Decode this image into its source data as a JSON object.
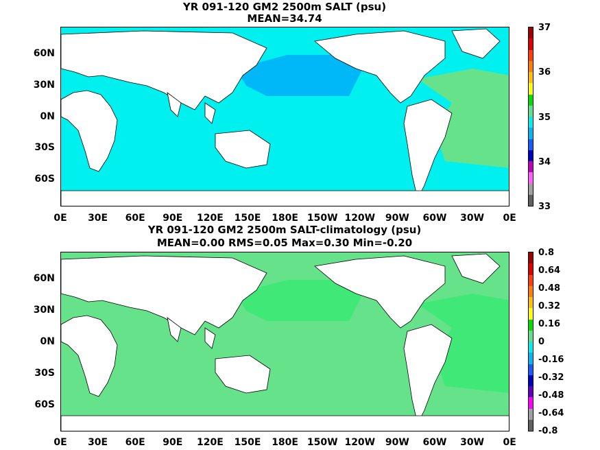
{
  "panels": [
    {
      "title_line1": "YR 091-120 GM2 2500m SALT (psu)",
      "title_line2": "MEAN=34.74",
      "ocean_color": "#00f0f0",
      "pacific_color": "#00b8f8",
      "atlantic_color": "#66e38a",
      "colorbar_labels": [
        "37",
        "36",
        "35",
        "34",
        "33"
      ],
      "colorbar_colors": [
        "#a00000",
        "#e00000",
        "#ff4000",
        "#ff8000",
        "#ffc000",
        "#ffff00",
        "#00e000",
        "#60e090",
        "#00f0f0",
        "#00b8f8",
        "#1060ff",
        "#0000c0",
        "#c000c0",
        "#ff60ff",
        "#a0a0a0",
        "#606060"
      ]
    },
    {
      "title_line1": "YR 091-120 GM2 2500m SALT-climatology (psu)",
      "title_line2": "MEAN=0.00   RMS=0.05   Max=0.30   Min=-0.20",
      "ocean_color": "#66e38a",
      "pacific_color": "#40e878",
      "atlantic_color": "#40e878",
      "colorbar_labels": [
        "0.8",
        "0.64",
        "0.48",
        "0.32",
        "0.16",
        "0",
        "-0.16",
        "-0.32",
        "-0.48",
        "-0.64",
        "-0.8"
      ],
      "colorbar_colors": [
        "#a00000",
        "#e00000",
        "#ff4000",
        "#ff8000",
        "#ffc000",
        "#ffff00",
        "#00e000",
        "#60e090",
        "#00f0f0",
        "#00b8f8",
        "#1060ff",
        "#0000c0",
        "#6000c0",
        "#ff00ff",
        "#a0a0a0",
        "#606060"
      ]
    }
  ],
  "lat_labels": [
    "60N",
    "30N",
    "0N",
    "30S",
    "60S"
  ],
  "lon_labels": [
    "0E",
    "30E",
    "60E",
    "90E",
    "120E",
    "150E",
    "180E",
    "150W",
    "120W",
    "90W",
    "60W",
    "30W",
    "0E"
  ]
}
